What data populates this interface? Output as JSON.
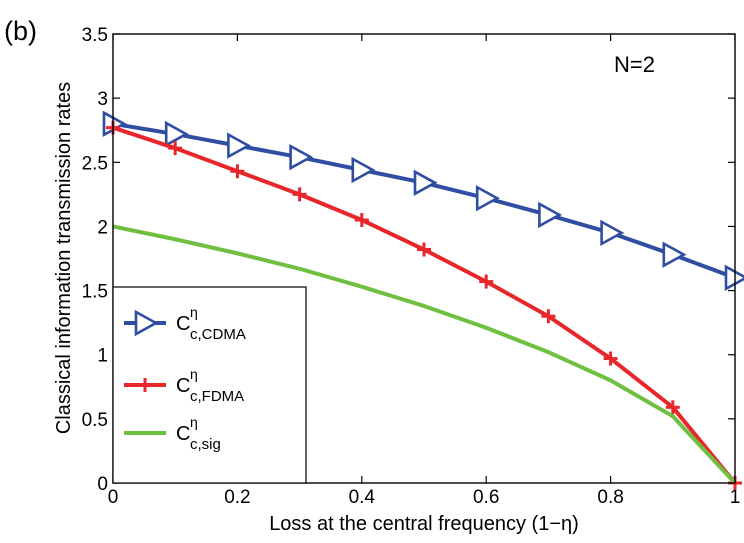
{
  "chart_data": {
    "type": "line",
    "panel_label": "(b)",
    "annotation": "N=2",
    "xlabel": "Loss at the central frequency (1−η)",
    "ylabel": "Classical information transmission rates",
    "xlim": [
      0,
      1
    ],
    "ylim": [
      0,
      3.5
    ],
    "xticks": [
      "0",
      "0.2",
      "0.4",
      "0.6",
      "0.8",
      "1"
    ],
    "yticks": [
      "0",
      "0.5",
      "1",
      "1.5",
      "2",
      "2.5",
      "3",
      "3.5"
    ],
    "grid": false,
    "legend_position": "lower-left",
    "x": [
      0,
      0.1,
      0.2,
      0.3,
      0.4,
      0.5,
      0.6,
      0.7,
      0.8,
      0.9,
      1.0
    ],
    "series": [
      {
        "legend": {
          "base": "C",
          "sup": "η",
          "sub": "c,CDMA"
        },
        "color": "#2f4ea3",
        "marker": "triangle-right",
        "values": [
          2.8,
          2.72,
          2.63,
          2.54,
          2.44,
          2.34,
          2.22,
          2.09,
          1.95,
          1.78,
          1.6
        ]
      },
      {
        "legend": {
          "base": "C",
          "sup": "η",
          "sub": "c,FDMA"
        },
        "color": "#e8262b",
        "marker": "plus",
        "values": [
          2.77,
          2.61,
          2.43,
          2.25,
          2.05,
          1.82,
          1.57,
          1.3,
          0.97,
          0.59,
          0.0
        ]
      },
      {
        "legend": {
          "base": "C",
          "sup": "η",
          "sub": "c,sig"
        },
        "color": "#6fbf40",
        "marker": "none",
        "values": [
          2.0,
          1.9,
          1.79,
          1.67,
          1.53,
          1.38,
          1.21,
          1.02,
          0.8,
          0.52,
          0.0
        ]
      }
    ]
  }
}
